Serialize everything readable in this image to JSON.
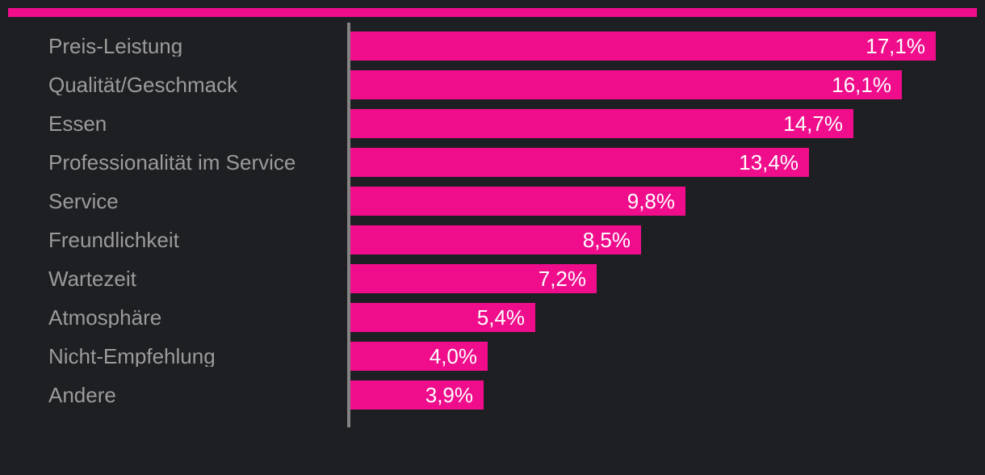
{
  "page": {
    "background_color": "#1E1F22"
  },
  "chart_data": {
    "type": "bar",
    "orientation": "horizontal",
    "title": "",
    "xlabel": "",
    "ylabel": "",
    "categories": [
      "Preis-Leistung",
      "Qualität/Geschmack",
      "Essen",
      "Professionalität im Service",
      "Service",
      "Freundlichkeit",
      "Wartezeit",
      "Atmosphäre",
      "Nicht-Empfehlung",
      "Andere"
    ],
    "values": [
      17.1,
      16.1,
      14.7,
      13.4,
      9.8,
      8.5,
      7.2,
      5.4,
      4.0,
      3.9
    ],
    "value_labels": [
      "17,1%",
      "16,1%",
      "14,7%",
      "13,4%",
      "9,8%",
      "8,5%",
      "7,2%",
      "5,4%",
      "4,0%",
      "3,9%"
    ],
    "value_unit": "%",
    "decimal_separator": ",",
    "xlim": [
      0,
      18.3
    ],
    "grid": false,
    "legend": false,
    "value_label_position": "inside-end",
    "bar_color": "#F00D8C",
    "accent_stripe_color": "#F00D8C",
    "category_label_color": "#9B9B9B",
    "value_label_color": "#FFFFFF",
    "axis_line_color": "#838383"
  }
}
